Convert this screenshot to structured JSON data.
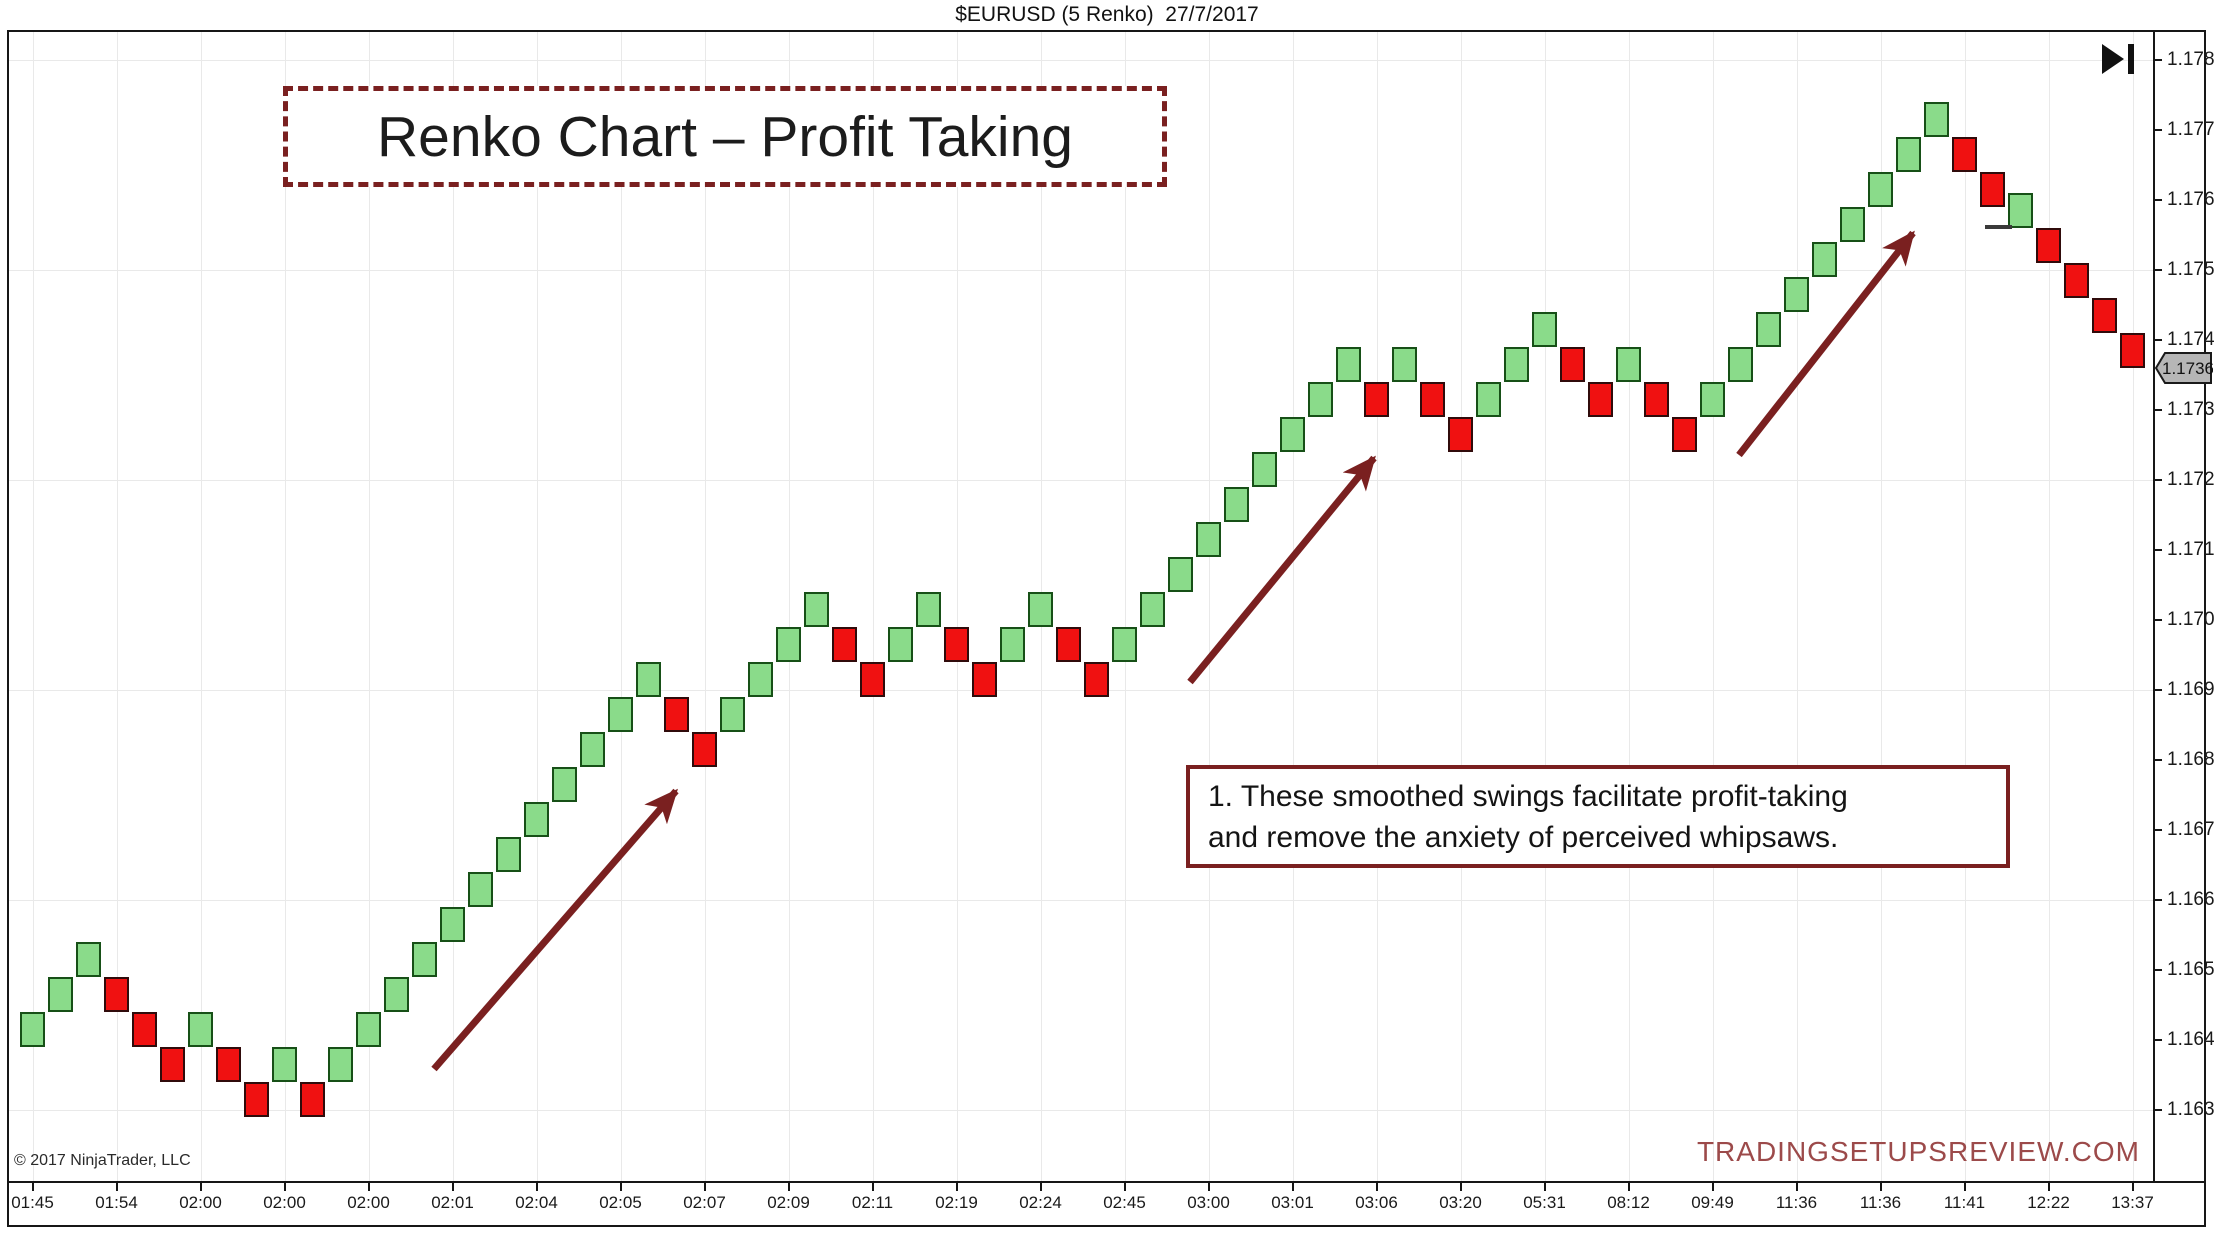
{
  "header": {
    "title": "$EURUSD (5 Renko)  27/7/2017"
  },
  "title_box": {
    "text": "Renko Chart – Profit Taking"
  },
  "annotation_box": {
    "lines": [
      "1. These smoothed swings facilitate profit-taking",
      "and remove the anxiety of perceived whipsaws."
    ]
  },
  "footer": {
    "copyright": "© 2017 NinjaTrader, LLC",
    "watermark": "TRADINGSETUPSREVIEW.COM"
  },
  "colors": {
    "brick_up_fill": "#8ADB8A",
    "brick_up_border": "#175017",
    "brick_down_fill": "#F01111",
    "brick_down_border": "#300b0b",
    "maroon": "#7a2020",
    "watermark": "#9c4a4a",
    "grid": "#e9e9e9",
    "axis": "#161616",
    "tag_bg": "#b6b6b6"
  },
  "chart_data": {
    "type": "renko",
    "title": "$EURUSD (5 Renko) 27/7/2017",
    "instrument": "$EURUSD",
    "brick_size_pips": 5,
    "date": "27/7/2017",
    "ylim": [
      1.163,
      1.178
    ],
    "grid": "on",
    "price_ticks": [
      "1.1780",
      "1.1770",
      "1.1760",
      "1.1750",
      "1.1740",
      "1.1730",
      "1.1720",
      "1.1710",
      "1.1700",
      "1.1690",
      "1.1680",
      "1.1670",
      "1.1660",
      "1.1650",
      "1.1640",
      "1.1630"
    ],
    "time_ticks": [
      "01:45",
      "01:54",
      "02:00",
      "02:00",
      "02:00",
      "02:01",
      "02:04",
      "02:05",
      "02:07",
      "02:09",
      "02:11",
      "02:19",
      "02:24",
      "02:45",
      "03:00",
      "03:01",
      "03:06",
      "03:20",
      "05:31",
      "08:12",
      "09:49",
      "11:36",
      "11:36",
      "11:41",
      "12:22",
      "13:37"
    ],
    "hgrid_prices": [
      1.178,
      1.175,
      1.172,
      1.169,
      1.166,
      1.163
    ],
    "last_price": "1.1736",
    "bricks": [
      [
        "u",
        1.1639,
        1.1644
      ],
      [
        "u",
        1.1644,
        1.1649
      ],
      [
        "u",
        1.1649,
        1.1654
      ],
      [
        "d",
        1.1649,
        1.1644
      ],
      [
        "d",
        1.1644,
        1.1639
      ],
      [
        "d",
        1.1639,
        1.1634
      ],
      [
        "u",
        1.1639,
        1.1644
      ],
      [
        "d",
        1.1639,
        1.1634
      ],
      [
        "d",
        1.1634,
        1.1629
      ],
      [
        "u",
        1.1634,
        1.1639
      ],
      [
        "d",
        1.1634,
        1.1629
      ],
      [
        "u",
        1.1634,
        1.1639
      ],
      [
        "u",
        1.1639,
        1.1644
      ],
      [
        "u",
        1.1644,
        1.1649
      ],
      [
        "u",
        1.1649,
        1.1654
      ],
      [
        "u",
        1.1654,
        1.1659
      ],
      [
        "u",
        1.1659,
        1.1664
      ],
      [
        "u",
        1.1664,
        1.1669
      ],
      [
        "u",
        1.1669,
        1.1674
      ],
      [
        "u",
        1.1674,
        1.1679
      ],
      [
        "u",
        1.1679,
        1.1684
      ],
      [
        "u",
        1.1684,
        1.1689
      ],
      [
        "u",
        1.1689,
        1.1694
      ],
      [
        "d",
        1.1689,
        1.1684
      ],
      [
        "d",
        1.1684,
        1.1679
      ],
      [
        "u",
        1.1684,
        1.1689
      ],
      [
        "u",
        1.1689,
        1.1694
      ],
      [
        "u",
        1.1694,
        1.1699
      ],
      [
        "u",
        1.1699,
        1.1704
      ],
      [
        "d",
        1.1699,
        1.1694
      ],
      [
        "d",
        1.1694,
        1.1689
      ],
      [
        "u",
        1.1694,
        1.1699
      ],
      [
        "u",
        1.1699,
        1.1704
      ],
      [
        "d",
        1.1699,
        1.1694
      ],
      [
        "d",
        1.1694,
        1.1689
      ],
      [
        "u",
        1.1694,
        1.1699
      ],
      [
        "u",
        1.1699,
        1.1704
      ],
      [
        "d",
        1.1699,
        1.1694
      ],
      [
        "d",
        1.1694,
        1.1689
      ],
      [
        "u",
        1.1694,
        1.1699
      ],
      [
        "u",
        1.1699,
        1.1704
      ],
      [
        "u",
        1.1704,
        1.1709
      ],
      [
        "u",
        1.1709,
        1.1714
      ],
      [
        "u",
        1.1714,
        1.1719
      ],
      [
        "u",
        1.1719,
        1.1724
      ],
      [
        "u",
        1.1724,
        1.1729
      ],
      [
        "u",
        1.1729,
        1.1734
      ],
      [
        "u",
        1.1734,
        1.1739
      ],
      [
        "d",
        1.1734,
        1.1729
      ],
      [
        "u",
        1.1734,
        1.1739
      ],
      [
        "d",
        1.1734,
        1.1729
      ],
      [
        "d",
        1.1729,
        1.1724
      ],
      [
        "u",
        1.1729,
        1.1734
      ],
      [
        "u",
        1.1734,
        1.1739
      ],
      [
        "u",
        1.1739,
        1.1744
      ],
      [
        "d",
        1.1739,
        1.1734
      ],
      [
        "d",
        1.1734,
        1.1729
      ],
      [
        "u",
        1.1734,
        1.1739
      ],
      [
        "d",
        1.1734,
        1.1729
      ],
      [
        "d",
        1.1729,
        1.1724
      ],
      [
        "u",
        1.1729,
        1.1734
      ],
      [
        "u",
        1.1734,
        1.1739
      ],
      [
        "u",
        1.1739,
        1.1744
      ],
      [
        "u",
        1.1744,
        1.1749
      ],
      [
        "u",
        1.1749,
        1.1754
      ],
      [
        "u",
        1.1754,
        1.1759
      ],
      [
        "u",
        1.1759,
        1.1764
      ],
      [
        "u",
        1.1764,
        1.1769
      ],
      [
        "u",
        1.1769,
        1.1774
      ],
      [
        "d",
        1.1769,
        1.1764
      ],
      [
        "d",
        1.1764,
        1.1759
      ],
      [
        "u",
        1.1756,
        1.1761
      ],
      [
        "d",
        1.1756,
        1.1751
      ],
      [
        "d",
        1.1751,
        1.1746
      ],
      [
        "d",
        1.1746,
        1.1741
      ],
      [
        "d",
        1.1741,
        1.1736
      ]
    ],
    "arrows": [
      {
        "from": [
          434,
          1069
        ],
        "to": [
          676,
          791
        ]
      },
      {
        "from": [
          1190,
          682
        ],
        "to": [
          1374,
          458
        ]
      },
      {
        "from": [
          1739,
          455
        ],
        "to": [
          1913,
          233
        ]
      }
    ],
    "dash_marker": {
      "x": 1985,
      "y": 225,
      "w": 27
    }
  }
}
